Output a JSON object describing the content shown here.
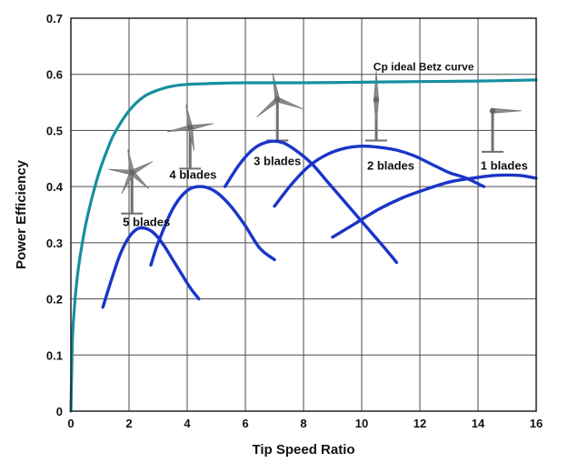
{
  "chart_data": {
    "type": "line",
    "xlabel": "Tip Speed Ratio",
    "ylabel": "Power Efficiency",
    "xlim": [
      0,
      16
    ],
    "ylim": [
      0,
      0.7
    ],
    "xticks": [
      0,
      2,
      4,
      6,
      8,
      10,
      12,
      14,
      16
    ],
    "yticks": [
      0,
      0.1,
      0.2,
      0.3,
      0.4,
      0.5,
      0.6,
      0.7
    ],
    "grid": true,
    "colors": {
      "betz": "#168fa0",
      "blades": "#1a35c8",
      "grid": "#4a4a4a",
      "turbine": "#7a7a7a"
    },
    "series": [
      {
        "name": "Cp ideal Betz curve",
        "x": [
          0,
          0.05,
          0.1,
          0.2,
          0.3,
          0.5,
          0.75,
          1,
          1.25,
          1.5,
          2,
          2.5,
          3,
          3.5,
          4,
          5,
          6,
          8,
          10,
          12,
          14,
          16
        ],
        "y": [
          0,
          0.12,
          0.17,
          0.23,
          0.27,
          0.33,
          0.385,
          0.43,
          0.465,
          0.495,
          0.535,
          0.56,
          0.572,
          0.579,
          0.582,
          0.584,
          0.585,
          0.585,
          0.586,
          0.587,
          0.588,
          0.59
        ]
      },
      {
        "name": "5 blades",
        "x": [
          1.1,
          1.4,
          1.7,
          2.0,
          2.3,
          2.6,
          2.9,
          3.2,
          3.5,
          3.8,
          4.1,
          4.4
        ],
        "y": [
          0.185,
          0.235,
          0.28,
          0.31,
          0.325,
          0.325,
          0.315,
          0.295,
          0.27,
          0.245,
          0.22,
          0.2
        ]
      },
      {
        "name": "4 blades",
        "x": [
          2.75,
          3.0,
          3.5,
          4.0,
          4.5,
          5.0,
          5.5,
          6.0,
          6.5,
          7.0
        ],
        "y": [
          0.26,
          0.3,
          0.36,
          0.393,
          0.4,
          0.39,
          0.365,
          0.33,
          0.29,
          0.27
        ]
      },
      {
        "name": "3 blades",
        "x": [
          5.3,
          5.8,
          6.3,
          6.8,
          7.3,
          7.8,
          8.3,
          8.8,
          9.3,
          9.8,
          10.3,
          10.8,
          11.2
        ],
        "y": [
          0.4,
          0.44,
          0.468,
          0.48,
          0.478,
          0.462,
          0.44,
          0.41,
          0.38,
          0.35,
          0.32,
          0.29,
          0.265
        ]
      },
      {
        "name": "2 blades",
        "x": [
          7.0,
          7.6,
          8.2,
          8.8,
          9.4,
          10.0,
          10.6,
          11.2,
          11.8,
          12.4,
          13.0,
          13.6,
          14.2
        ],
        "y": [
          0.365,
          0.405,
          0.437,
          0.457,
          0.468,
          0.472,
          0.47,
          0.465,
          0.455,
          0.44,
          0.425,
          0.415,
          0.4
        ]
      },
      {
        "name": "1 blades",
        "x": [
          9.0,
          9.8,
          10.6,
          11.4,
          12.2,
          13.0,
          13.8,
          14.6,
          15.4,
          16.0
        ],
        "y": [
          0.31,
          0.335,
          0.36,
          0.38,
          0.395,
          0.408,
          0.415,
          0.42,
          0.42,
          0.415
        ]
      }
    ],
    "annotations": [
      {
        "text": "Cp ideal Betz curve",
        "x": 10.4,
        "y": 0.607
      },
      {
        "text": "5 blades",
        "x": 2.6,
        "y": 0.33
      },
      {
        "text": "4 blades",
        "x": 4.2,
        "y": 0.414
      },
      {
        "text": "3 blades",
        "x": 7.1,
        "y": 0.438
      },
      {
        "text": "2 blades",
        "x": 11.0,
        "y": 0.43
      },
      {
        "text": "1 blades",
        "x": 14.9,
        "y": 0.43
      }
    ],
    "turbines": [
      {
        "series": "5 blades",
        "x": 2.1,
        "y": 0.425,
        "blades": 5
      },
      {
        "series": "4 blades",
        "x": 4.1,
        "y": 0.505,
        "blades": 4
      },
      {
        "series": "3 blades",
        "x": 7.1,
        "y": 0.555,
        "blades": 3
      },
      {
        "series": "2 blades",
        "x": 10.5,
        "y": 0.555,
        "blades": 2
      },
      {
        "series": "1 blades",
        "x": 14.5,
        "y": 0.535,
        "blades": 1
      }
    ]
  }
}
